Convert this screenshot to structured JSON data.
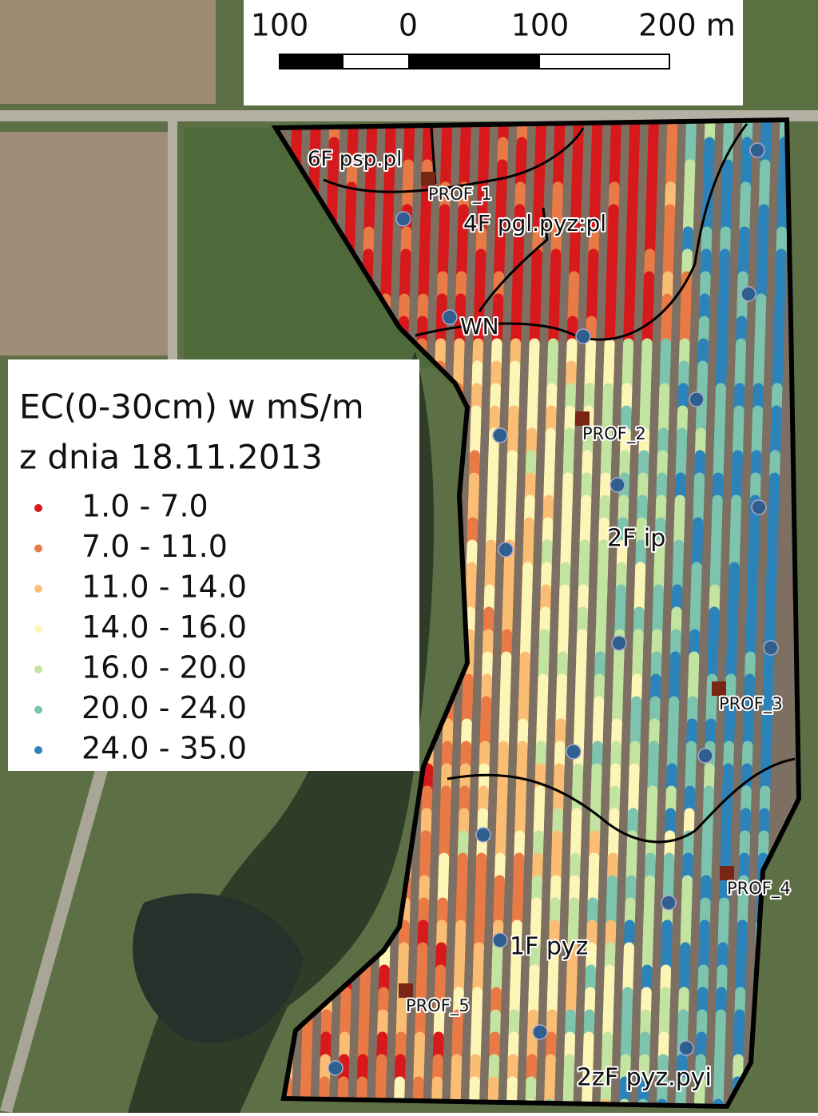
{
  "scale_bar": {
    "labels": [
      "100",
      "0",
      "100",
      "200 m"
    ]
  },
  "legend": {
    "title_lines": [
      "EC(0-30cm) w mS/m",
      "z dnia 18.11.2013"
    ],
    "items": [
      {
        "label": "1.0 - 7.0",
        "color": "#d7191c"
      },
      {
        "label": "7.0 - 11.0",
        "color": "#ea7a45"
      },
      {
        "label": "11.0 - 14.0",
        "color": "#fbbd74"
      },
      {
        "label": "14.0 - 16.0",
        "color": "#fdf5b5"
      },
      {
        "label": "16.0 - 20.0",
        "color": "#c3e3a0"
      },
      {
        "label": "20.0 - 24.0",
        "color": "#7cc4ad"
      },
      {
        "label": "24.0 - 35.0",
        "color": "#2b83ba"
      }
    ]
  },
  "soil_labels": [
    "6F psp.pl",
    "4F pgl.pyz:pl",
    "WN",
    "2F ip",
    "1F pyz",
    "2zF pyz.pyi"
  ],
  "profiles": [
    "PROF_1",
    "PROF_2",
    "PROF_3",
    "PROF_4",
    "PROF_5"
  ]
}
